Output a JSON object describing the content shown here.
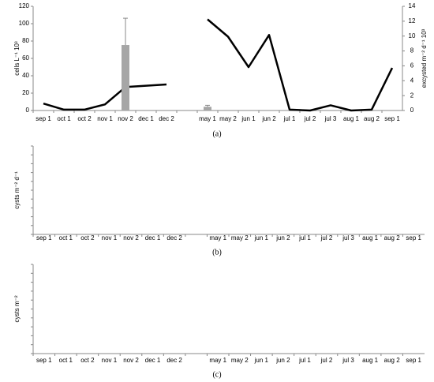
{
  "chart_data": [
    {
      "type": "combo",
      "caption": "(a)",
      "y_label": "cells L⁻¹ 10³",
      "y2_label": "excysted m⁻² d⁻¹ 10³",
      "categories": [
        "sep 1",
        "oct 1",
        "oct 2",
        "nov 1",
        "nov 2",
        "dec 1",
        "dec 2",
        null,
        "may 1",
        "may 2",
        "jun 1",
        "jun 2",
        "jul 1",
        "jul 2",
        "jul 3",
        "aug 1",
        "aug 2",
        "sep 1"
      ],
      "ylim": [
        0,
        120
      ],
      "yticks": [
        0,
        20,
        40,
        60,
        80,
        100,
        120
      ],
      "y2lim": [
        0,
        14
      ],
      "y2ticks": [
        0,
        2,
        4,
        6,
        8,
        10,
        12,
        14
      ],
      "series": [
        {
          "type": "line",
          "color": "#000000",
          "values": [
            8,
            1,
            1,
            7,
            27,
            28.5,
            30,
            null,
            105,
            85,
            50,
            87,
            1,
            0,
            6,
            0,
            1,
            49
          ]
        },
        {
          "type": "bar",
          "axis": "y2",
          "color": "#a6a6a6",
          "values": [
            null,
            null,
            null,
            null,
            8.8,
            null,
            null,
            null,
            0.5,
            null,
            null,
            null,
            null,
            null,
            null,
            null,
            null,
            null
          ],
          "errors": [
            null,
            null,
            null,
            null,
            3.6,
            null,
            null,
            null,
            0.2,
            null,
            null,
            null,
            null,
            null,
            null,
            null,
            null,
            null
          ]
        }
      ]
    },
    {
      "type": "empty",
      "caption": "(b)",
      "y_label": "cysts m⁻² d⁻¹",
      "categories": [
        "sep 1",
        "oct 1",
        "oct 2",
        "nov 1",
        "nov 2",
        "dec 1",
        "dec 2",
        null,
        "may 1",
        "may 2",
        "jun 1",
        "jun 2",
        "jul 1",
        "jul 2",
        "jul 3",
        "aug 1",
        "aug 2",
        "sep 1"
      ]
    },
    {
      "type": "empty",
      "caption": "(c)",
      "y_label": "cysts m⁻²",
      "categories": [
        "sep 1",
        "oct 1",
        "oct 2",
        "nov 1",
        "nov 2",
        "dec 1",
        "dec 2",
        null,
        "may 1",
        "may 2",
        "jun 1",
        "jun 2",
        "jul 1",
        "jul 2",
        "jul 3",
        "aug 1",
        "aug 2",
        "sep 1"
      ]
    }
  ]
}
